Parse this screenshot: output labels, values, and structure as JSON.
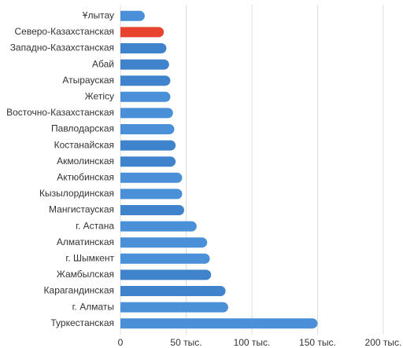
{
  "chart_data": {
    "type": "barh",
    "categories": [
      "Ұлытау",
      "Северо-Казахстанская",
      "Западно-Казахстанская",
      "Абай",
      "Атырауская",
      "Жетісу",
      "Восточно-Казахстанская",
      "Павлодарская",
      "Костанайская",
      "Акмолинская",
      "Актюбинская",
      "Кызылординская",
      "Мангистауская",
      "г. Астана",
      "Алматинская",
      "г. Шымкент",
      "Жамбылская",
      "Карагандинская",
      "г. Алматы",
      "Туркестанская"
    ],
    "values": [
      18500,
      33000,
      35000,
      37000,
      38000,
      38000,
      40000,
      41000,
      42000,
      42000,
      47000,
      47000,
      48500,
      58000,
      66000,
      68000,
      69000,
      80000,
      82000,
      150000
    ],
    "colors": [
      "#4a90d9",
      "#e8432e",
      "#3f83cc",
      "#3f83cc",
      "#3f83cc",
      "#4a90d9",
      "#4a90d9",
      "#4a90d9",
      "#3f83cc",
      "#3f83cc",
      "#4a90d9",
      "#4a90d9",
      "#3f83cc",
      "#4a90d9",
      "#4a90d9",
      "#4a90d9",
      "#3f83cc",
      "#3f83cc",
      "#4a90d9",
      "#4a90d9"
    ],
    "xlim": [
      0,
      215000
    ],
    "xticks": [
      0,
      {
        "value": 50000,
        "label": "50 тыс."
      },
      {
        "value": 100000,
        "label": "100 тыс."
      },
      {
        "value": 150000,
        "label": "150 тыс."
      },
      {
        "value": 200000,
        "label": "200 тыс."
      }
    ],
    "grid": true
  }
}
